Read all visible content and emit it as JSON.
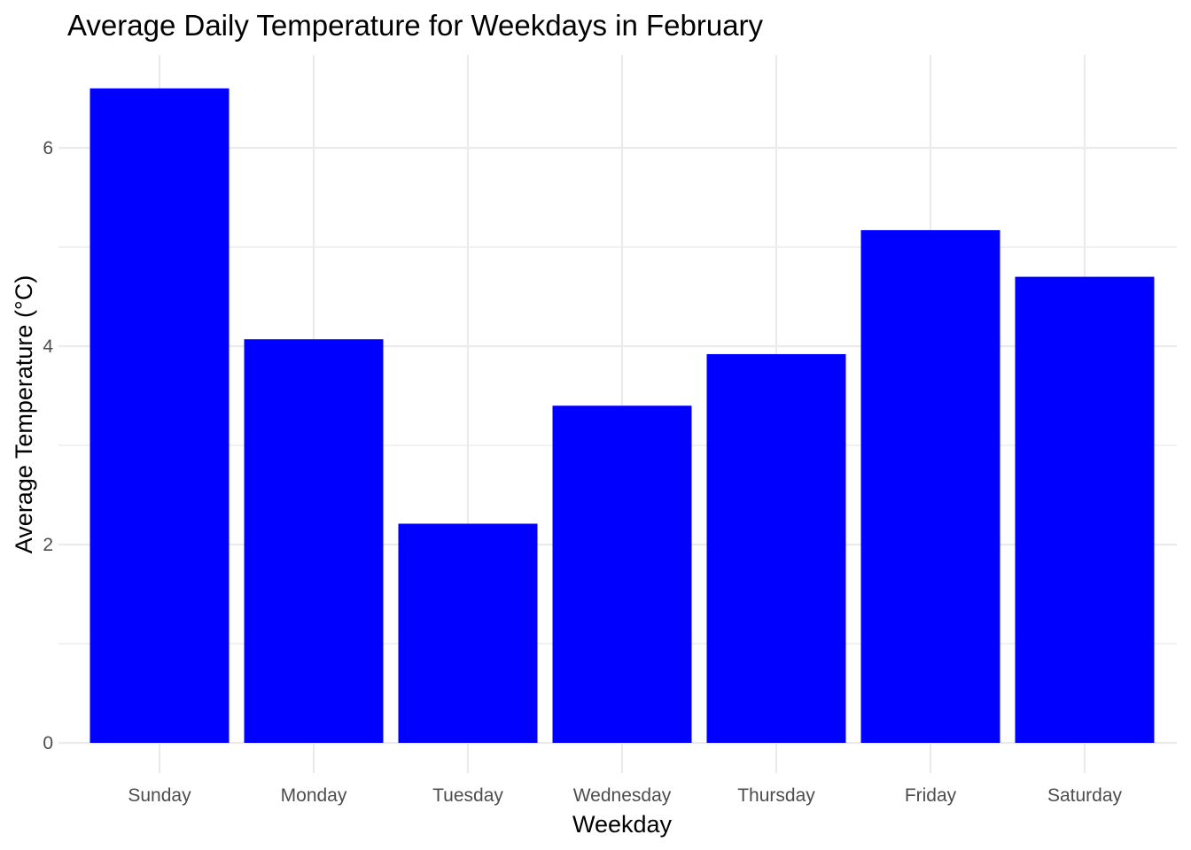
{
  "chart_data": {
    "type": "bar",
    "title": "Average Daily Temperature for Weekdays in February",
    "xlabel": "Weekday",
    "ylabel": "Average Temperature (°C)",
    "categories": [
      "Sunday",
      "Monday",
      "Tuesday",
      "Wednesday",
      "Thursday",
      "Friday",
      "Saturday"
    ],
    "values": [
      6.6,
      4.07,
      2.21,
      3.4,
      3.92,
      5.17,
      4.7
    ],
    "ylim": [
      0,
      6.93
    ],
    "yticks": [
      0,
      2,
      4,
      6
    ],
    "grid": true,
    "legend": "none",
    "bar_color": "#0000ff",
    "grid_color": "#ebebeb"
  }
}
